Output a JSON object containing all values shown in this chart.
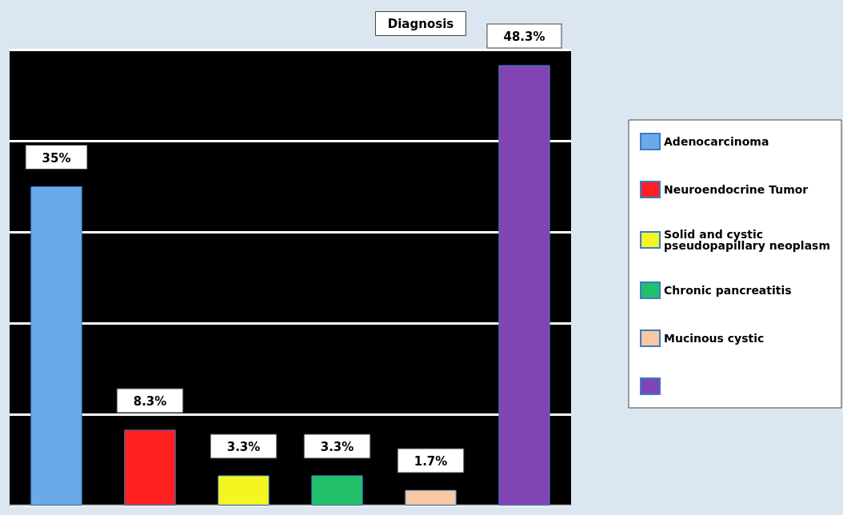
{
  "chart_data": {
    "type": "bar",
    "title": "Diagnosis",
    "stacked": true,
    "categories": [
      null,
      null,
      null,
      null,
      null,
      null
    ],
    "series": [
      {
        "name": "Adenocarcinoma",
        "color": "#6aaae8",
        "values": [
          35,
          null,
          null,
          null,
          null,
          null
        ],
        "value_labels": [
          "35%",
          null,
          null,
          null,
          null,
          null
        ]
      },
      {
        "name": "Neuroendocrine Tumor",
        "color": "#ff2020",
        "values": [
          null,
          8.3,
          null,
          null,
          null,
          null
        ],
        "value_labels": [
          null,
          "8.3%",
          null,
          null,
          null,
          null
        ]
      },
      {
        "name": "Solid and cystic pseudopapillary neoplasm",
        "color": "#f5f522",
        "values": [
          null,
          null,
          3.3,
          null,
          null,
          null
        ],
        "value_labels": [
          null,
          null,
          "3.3%",
          null,
          null,
          null
        ]
      },
      {
        "name": "Chronic pancreatitis",
        "color": "#22c068",
        "values": [
          null,
          null,
          null,
          3.3,
          null,
          null
        ],
        "value_labels": [
          null,
          null,
          null,
          "3.3%",
          null,
          null
        ]
      },
      {
        "name": "Mucinous cystic",
        "color": "#f8c8a0",
        "values": [
          null,
          null,
          null,
          null,
          1.7,
          null
        ],
        "value_labels": [
          null,
          null,
          null,
          null,
          "1.7%",
          null
        ]
      },
      {
        "color": "#8244b4",
        "values": [
          null,
          null,
          null,
          null,
          null,
          48.3
        ],
        "value_labels": [
          null,
          null,
          null,
          null,
          null,
          "48.3%"
        ]
      }
    ],
    "grid": "y",
    "tick_labels": false,
    "legend": "right"
  }
}
